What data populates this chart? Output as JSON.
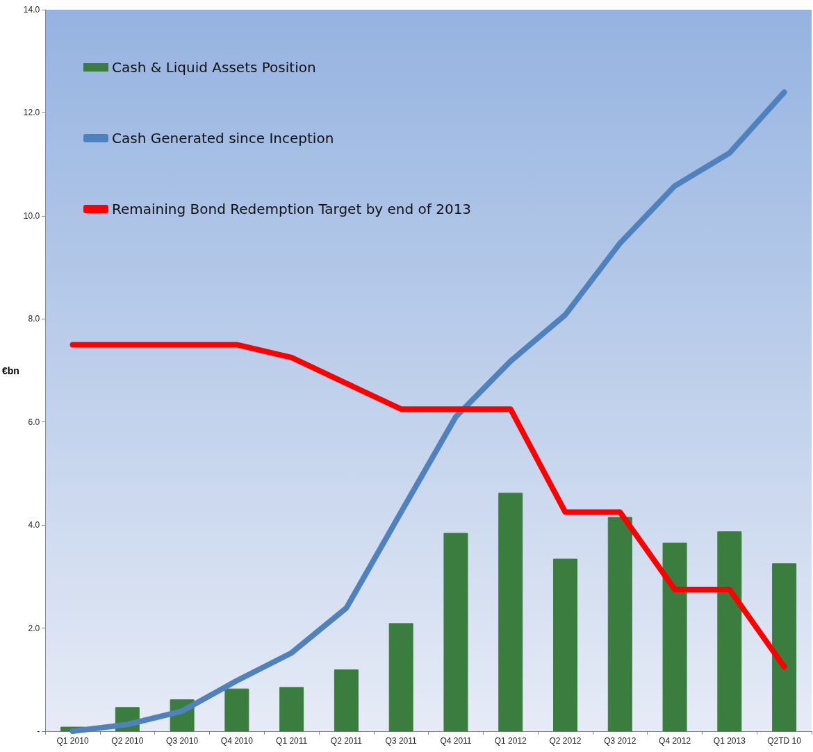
{
  "chart_data": {
    "type": "bar",
    "ylabel": "€bn",
    "categories": [
      "Q1 2010",
      "Q2 2010",
      "Q3 2010",
      "Q4 2010",
      "Q1 2011",
      "Q2 2011",
      "Q3 2011",
      "Q4 2011",
      "Q1 2012",
      "Q2 2012",
      "Q3 2012",
      "Q4 2012",
      "Q1 2013",
      "Q2TD 10"
    ],
    "series": [
      {
        "name": "Cash & Liquid Assets Position",
        "color": "#3a7d3f",
        "values": [
          0.08,
          0.46,
          0.61,
          0.82,
          0.85,
          1.19,
          2.09,
          3.84,
          4.62,
          3.34,
          4.15,
          3.65,
          3.87,
          3.25
        ]
      },
      {
        "name": "Cash Generated since Inception",
        "type": "line",
        "color": "#4f81bd",
        "values": [
          0.0,
          0.13,
          0.39,
          0.98,
          1.52,
          2.39,
          4.25,
          6.1,
          7.18,
          8.08,
          9.47,
          10.58,
          11.22,
          12.4
        ]
      },
      {
        "name": "Remaining Bond Redemption Target by end of 2013",
        "type": "line",
        "color": "#ff0000",
        "values": [
          7.5,
          7.5,
          7.5,
          7.5,
          7.25,
          6.75,
          6.25,
          6.25,
          6.25,
          4.25,
          4.25,
          2.75,
          2.75,
          1.25
        ]
      }
    ],
    "ylim": [
      0,
      14
    ],
    "yticks": [
      {
        "value": 0,
        "label": "-"
      },
      {
        "value": 2,
        "label": "2.0"
      },
      {
        "value": 4,
        "label": "4.0"
      },
      {
        "value": 6,
        "label": "6.0"
      },
      {
        "value": 8,
        "label": "8.0"
      },
      {
        "value": 10,
        "label": "10.0"
      },
      {
        "value": 12,
        "label": "12.0"
      },
      {
        "value": 14,
        "label": "14.0"
      }
    ],
    "grid": false,
    "legend": "top left",
    "marker": "none",
    "line_style": "solid"
  }
}
